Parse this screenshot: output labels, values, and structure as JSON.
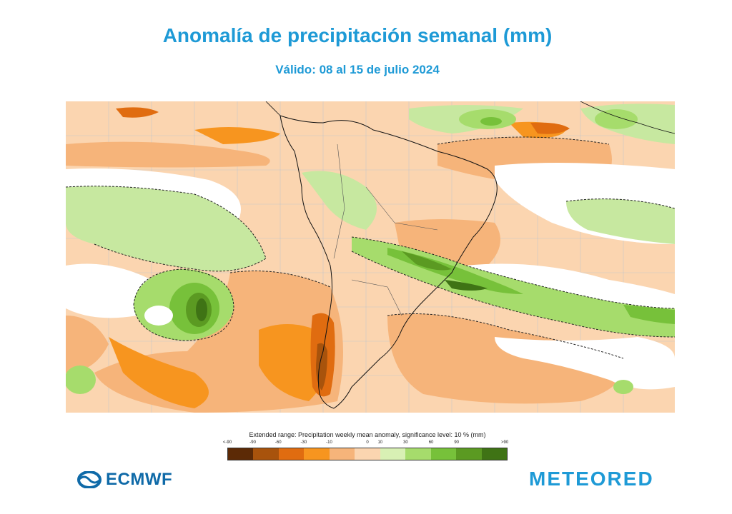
{
  "title": "Anomalía de precipitación semanal (mm)",
  "subtitle": "Válido: 08 al 15 de julio 2024",
  "legend": {
    "caption": "Extended range: Precipitation weekly mean anomaly, significance level: 10 % (mm)",
    "ticks": [
      "<-90",
      "-90",
      "-60",
      "-30",
      "-10",
      "0",
      "10",
      "30",
      "60",
      "90",
      ">90"
    ],
    "colors": [
      "#5c2a06",
      "#a8530c",
      "#e06c10",
      "#f7951f",
      "#f6b47a",
      "#fbd5b0",
      "#d8f0b4",
      "#a6dc6c",
      "#77c13a",
      "#5b9a22",
      "#3f7315"
    ]
  },
  "map": {
    "colors": {
      "dry_light": "#fbd5b0",
      "dry_medium": "#f6b47a",
      "dry_strong": "#f7951f",
      "dry_very_strong": "#e06c10",
      "dry_extreme": "#a8530c",
      "wet_light": "#c7e8a0",
      "wet_medium": "#a6dc6c",
      "wet_strong": "#77c13a",
      "wet_very_strong": "#5b9a22",
      "wet_extreme": "#3f7315"
    }
  },
  "logos": {
    "left": "ECMWF",
    "right": "METEORED"
  }
}
